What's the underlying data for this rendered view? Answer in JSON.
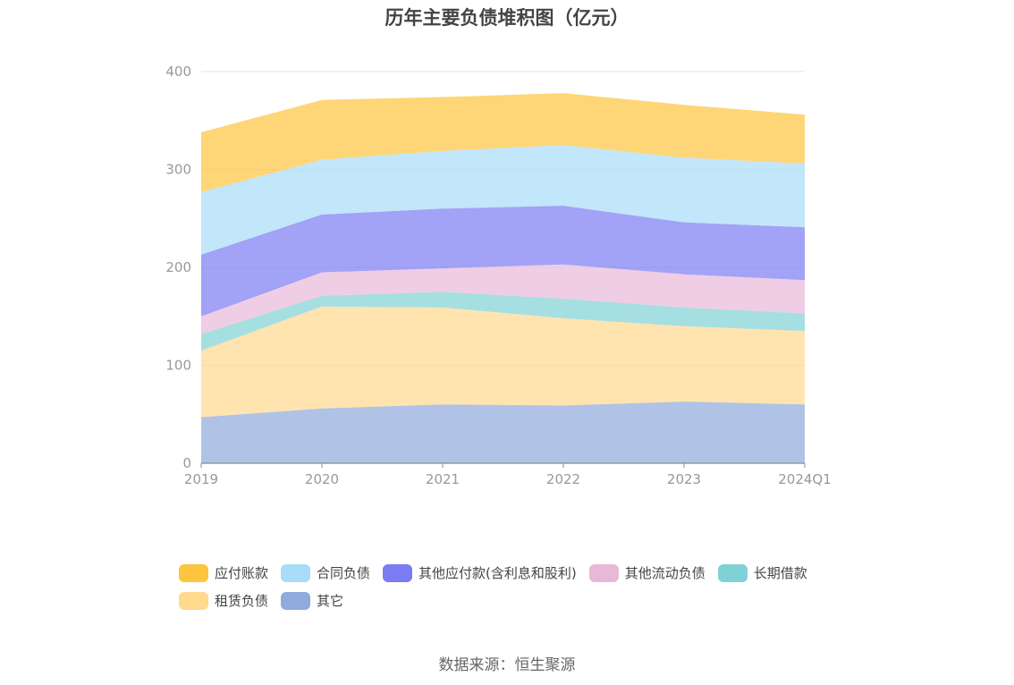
{
  "chart_data": {
    "type": "area",
    "stacked": true,
    "title": "历年主要负债堆积图（亿元）",
    "x": [
      "2019",
      "2020",
      "2021",
      "2022",
      "2023",
      "2024Q1"
    ],
    "ylim": [
      0,
      400
    ],
    "yticks": [
      0,
      100,
      200,
      300,
      400
    ],
    "grid": true,
    "legend_position": "bottom",
    "series": [
      {
        "name": "其它",
        "color": "#8FAADC",
        "values": [
          47,
          56,
          60,
          59,
          63,
          60
        ]
      },
      {
        "name": "租赁负债",
        "color": "#FFD98E",
        "values": [
          68,
          104,
          99,
          89,
          77,
          75
        ]
      },
      {
        "name": "长期借款",
        "color": "#7FD1D6",
        "values": [
          17,
          11,
          16,
          20,
          19,
          18
        ]
      },
      {
        "name": "其他流动负债",
        "color": "#E8B8D8",
        "values": [
          18,
          24,
          24,
          35,
          34,
          34
        ]
      },
      {
        "name": "其他应付款(含利息和股利)",
        "color": "#7B7BF2",
        "values": [
          63,
          59,
          61,
          60,
          53,
          54
        ]
      },
      {
        "name": "合同负债",
        "color": "#A8DCF8",
        "values": [
          64,
          56,
          59,
          62,
          66,
          65
        ]
      },
      {
        "name": "应付账款",
        "color": "#FDC43F",
        "values": [
          61,
          61,
          55,
          53,
          54,
          50
        ]
      }
    ],
    "legend_order": [
      "应付账款",
      "合同负债",
      "其他应付款(含利息和股利)",
      "其他流动负债",
      "长期借款",
      "租赁负债",
      "其它"
    ]
  },
  "source": "数据来源：恒生聚源"
}
